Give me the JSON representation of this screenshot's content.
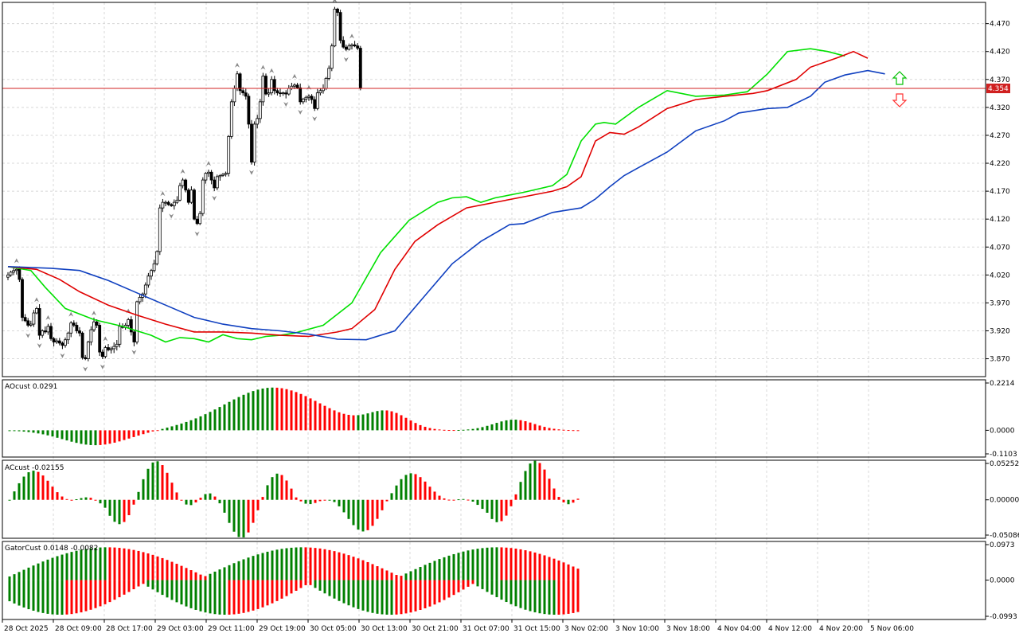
{
  "chart_data": [
    {
      "type": "candlestick",
      "panel": "price",
      "y_ticks": [
        "4.470",
        "4.420",
        "4.370",
        "4.320",
        "4.270",
        "4.220",
        "4.170",
        "4.120",
        "4.070",
        "4.020",
        "3.970",
        "3.920",
        "3.870"
      ],
      "ylim": [
        3.838,
        4.508
      ],
      "current_price": 4.354,
      "current_price_label": "4.354",
      "x_labels": [
        "28 Oct 2025",
        "28 Oct 09:00",
        "28 Oct 17:00",
        "29 Oct 03:00",
        "29 Oct 11:00",
        "29 Oct 19:00",
        "30 Oct 05:00",
        "30 Oct 13:00",
        "30 Oct 21:00",
        "31 Oct 07:00",
        "31 Oct 15:00",
        "3 Nov 02:00",
        "3 Nov 10:00",
        "3 Nov 18:00",
        "4 Nov 04:00",
        "4 Nov 12:00",
        "4 Nov 20:00",
        "5 Nov 06:00"
      ],
      "close": [
        4.02,
        4.025,
        4.028,
        4.03,
        4.012,
        3.944,
        3.938,
        3.93,
        3.932,
        3.952,
        3.96,
        3.912,
        3.92,
        3.918,
        3.928,
        3.906,
        3.9,
        3.902,
        3.898,
        3.894,
        3.904,
        3.916,
        3.934,
        3.93,
        3.92,
        3.916,
        3.872,
        3.87,
        3.9,
        3.922,
        3.936,
        3.93,
        3.882,
        3.874,
        3.89,
        3.886,
        3.888,
        3.892,
        3.896,
        3.928,
        3.926,
        3.93,
        3.94,
        3.918,
        3.9,
        3.972,
        3.98,
        3.986,
        4.002,
        4.018,
        4.028,
        4.04,
        4.062,
        4.14,
        4.15,
        4.15,
        4.146,
        4.144,
        4.15,
        4.154,
        4.18,
        4.19,
        4.172,
        4.15,
        4.172,
        4.12,
        4.112,
        4.13,
        4.19,
        4.202,
        4.204,
        4.19,
        4.176,
        4.196,
        4.198,
        4.2,
        4.202,
        4.268,
        4.33,
        4.354,
        4.38,
        4.35,
        4.346,
        4.34,
        4.29,
        4.222,
        4.29,
        4.3,
        4.33,
        4.376,
        4.344,
        4.346,
        4.37,
        4.35,
        4.346,
        4.345,
        4.346,
        4.344,
        4.354,
        4.358,
        4.36,
        4.355,
        4.33,
        4.335,
        4.338,
        4.34,
        4.334,
        4.318,
        4.346,
        4.35,
        4.354,
        4.372,
        4.39,
        4.43,
        4.496,
        4.49,
        4.44,
        4.428,
        4.424,
        4.43,
        4.432,
        4.43,
        4.426,
        4.354
      ],
      "series": [
        {
          "name": "",
          "color": "#00e000",
          "points": [
            [
              0,
              4.035
            ],
            [
              8,
              4.028
            ],
            [
              13,
              3.998
            ],
            [
              20,
              3.96
            ],
            [
              30,
              3.94
            ],
            [
              40,
              3.928
            ],
            [
              50,
              3.912
            ],
            [
              55,
              3.9
            ],
            [
              60,
              3.908
            ],
            [
              65,
              3.906
            ],
            [
              70,
              3.9
            ],
            [
              75,
              3.913
            ],
            [
              80,
              3.906
            ],
            [
              85,
              3.904
            ],
            [
              90,
              3.91
            ],
            [
              95,
              3.912
            ],
            [
              100,
              3.916
            ],
            [
              110,
              3.93
            ],
            [
              120,
              3.97
            ],
            [
              130,
              4.06
            ],
            [
              140,
              4.118
            ],
            [
              150,
              4.15
            ],
            [
              155,
              4.158
            ],
            [
              160,
              4.16
            ],
            [
              165,
              4.15
            ],
            [
              170,
              4.158
            ],
            [
              180,
              4.168
            ],
            [
              190,
              4.18
            ],
            [
              195,
              4.2
            ],
            [
              200,
              4.26
            ],
            [
              205,
              4.29
            ],
            [
              208,
              4.293
            ],
            [
              212,
              4.29
            ],
            [
              220,
              4.32
            ],
            [
              230,
              4.35
            ],
            [
              240,
              4.34
            ],
            [
              250,
              4.342
            ],
            [
              258,
              4.348
            ],
            [
              265,
              4.38
            ],
            [
              272,
              4.42
            ],
            [
              280,
              4.425
            ],
            [
              286,
              4.42
            ],
            [
              292,
              4.412
            ]
          ]
        },
        {
          "name": "",
          "color": "#e00000",
          "points": [
            [
              0,
              4.035
            ],
            [
              10,
              4.03
            ],
            [
              18,
              4.012
            ],
            [
              25,
              3.99
            ],
            [
              35,
              3.966
            ],
            [
              45,
              3.948
            ],
            [
              55,
              3.932
            ],
            [
              65,
              3.918
            ],
            [
              75,
              3.918
            ],
            [
              85,
              3.916
            ],
            [
              95,
              3.912
            ],
            [
              105,
              3.91
            ],
            [
              115,
              3.918
            ],
            [
              120,
              3.924
            ],
            [
              128,
              3.958
            ],
            [
              135,
              4.03
            ],
            [
              142,
              4.08
            ],
            [
              150,
              4.11
            ],
            [
              160,
              4.14
            ],
            [
              170,
              4.15
            ],
            [
              180,
              4.16
            ],
            [
              190,
              4.17
            ],
            [
              195,
              4.178
            ],
            [
              200,
              4.196
            ],
            [
              205,
              4.26
            ],
            [
              210,
              4.275
            ],
            [
              215,
              4.272
            ],
            [
              220,
              4.285
            ],
            [
              230,
              4.318
            ],
            [
              240,
              4.334
            ],
            [
              250,
              4.34
            ],
            [
              260,
              4.345
            ],
            [
              265,
              4.35
            ],
            [
              275,
              4.37
            ],
            [
              280,
              4.392
            ],
            [
              290,
              4.41
            ],
            [
              295,
              4.42
            ],
            [
              300,
              4.408
            ]
          ]
        },
        {
          "name": "",
          "color": "#1040c0",
          "points": [
            [
              0,
              4.035
            ],
            [
              15,
              4.032
            ],
            [
              25,
              4.028
            ],
            [
              35,
              4.01
            ],
            [
              45,
              3.988
            ],
            [
              55,
              3.966
            ],
            [
              65,
              3.944
            ],
            [
              75,
              3.932
            ],
            [
              85,
              3.924
            ],
            [
              95,
              3.92
            ],
            [
              105,
              3.914
            ],
            [
              115,
              3.905
            ],
            [
              125,
              3.904
            ],
            [
              135,
              3.92
            ],
            [
              145,
              3.98
            ],
            [
              155,
              4.04
            ],
            [
              165,
              4.08
            ],
            [
              175,
              4.11
            ],
            [
              180,
              4.112
            ],
            [
              185,
              4.122
            ],
            [
              190,
              4.132
            ],
            [
              200,
              4.14
            ],
            [
              205,
              4.156
            ],
            [
              210,
              4.178
            ],
            [
              215,
              4.198
            ],
            [
              220,
              4.212
            ],
            [
              230,
              4.24
            ],
            [
              240,
              4.278
            ],
            [
              250,
              4.296
            ],
            [
              255,
              4.31
            ],
            [
              265,
              4.318
            ],
            [
              272,
              4.32
            ],
            [
              280,
              4.34
            ],
            [
              285,
              4.365
            ],
            [
              292,
              4.378
            ],
            [
              300,
              4.386
            ],
            [
              306,
              4.38
            ]
          ]
        }
      ]
    },
    {
      "type": "histogram",
      "panel": "indicator1",
      "label": "AOcust 0.0291",
      "y_ticks": [
        "0.2214",
        "0.0000",
        "-0.1103"
      ],
      "ylim": [
        -0.1103,
        0.2214
      ]
    },
    {
      "type": "histogram",
      "panel": "indicator2",
      "label": "ACcust -0.02155",
      "y_ticks": [
        "0.05252",
        "0.00000",
        "-0.05086"
      ],
      "ylim": [
        -0.05086,
        0.05252
      ]
    },
    {
      "type": "histogram",
      "panel": "indicator3",
      "label": "GatorCust 0.0148 -0.0082",
      "y_ticks": [
        "0.0973",
        "0.0000",
        "-0.0993"
      ],
      "ylim": [
        -0.0993,
        0.0973
      ]
    }
  ],
  "colors": {
    "up": "#008000",
    "down": "#ff0000",
    "candle_up": "#ffffff",
    "candle_down": "#000000",
    "grid": "#d8d8d8",
    "price_line": "#d02020"
  }
}
